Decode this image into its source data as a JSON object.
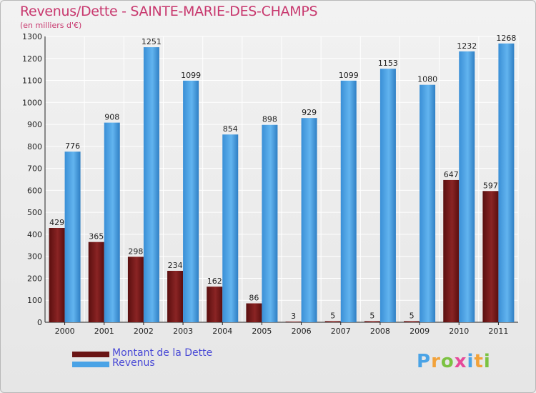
{
  "title": "Revenus/Dette - SAINTE-MARIE-DES-CHAMPS",
  "subtitle": "(en milliers d'€)",
  "chart_data": {
    "type": "bar",
    "categories": [
      "2000",
      "2001",
      "2002",
      "2003",
      "2004",
      "2005",
      "2006",
      "2007",
      "2008",
      "2009",
      "2010",
      "2011"
    ],
    "series": [
      {
        "name": "Montant de la Dette",
        "color": "#7a1b1b",
        "values": [
          429,
          365,
          298,
          234,
          162,
          86,
          3,
          5,
          5,
          5,
          647,
          597
        ]
      },
      {
        "name": "Revenus",
        "color": "#4aa3e6",
        "values": [
          776,
          908,
          1251,
          1099,
          854,
          898,
          929,
          1099,
          1153,
          1080,
          1232,
          1268
        ]
      }
    ],
    "ylim": [
      0,
      1300
    ],
    "yticks": [
      0,
      100,
      200,
      300,
      400,
      500,
      600,
      700,
      800,
      900,
      1000,
      1100,
      1200,
      1300
    ],
    "grid": true,
    "xlabel": "",
    "ylabel": ""
  },
  "legend": {
    "items": [
      {
        "label": "Montant de la Dette",
        "color": "#7a1b1b"
      },
      {
        "label": "Revenus",
        "color": "#4aa3e6"
      }
    ]
  },
  "logo": {
    "letters": [
      "P",
      "r",
      "o",
      "x",
      "i",
      "t",
      "i"
    ],
    "colors": [
      "#4aa3e6",
      "#f2a23a",
      "#7cc242",
      "#e64a9a",
      "#4aa3e6",
      "#f2a23a",
      "#7cc242"
    ]
  }
}
